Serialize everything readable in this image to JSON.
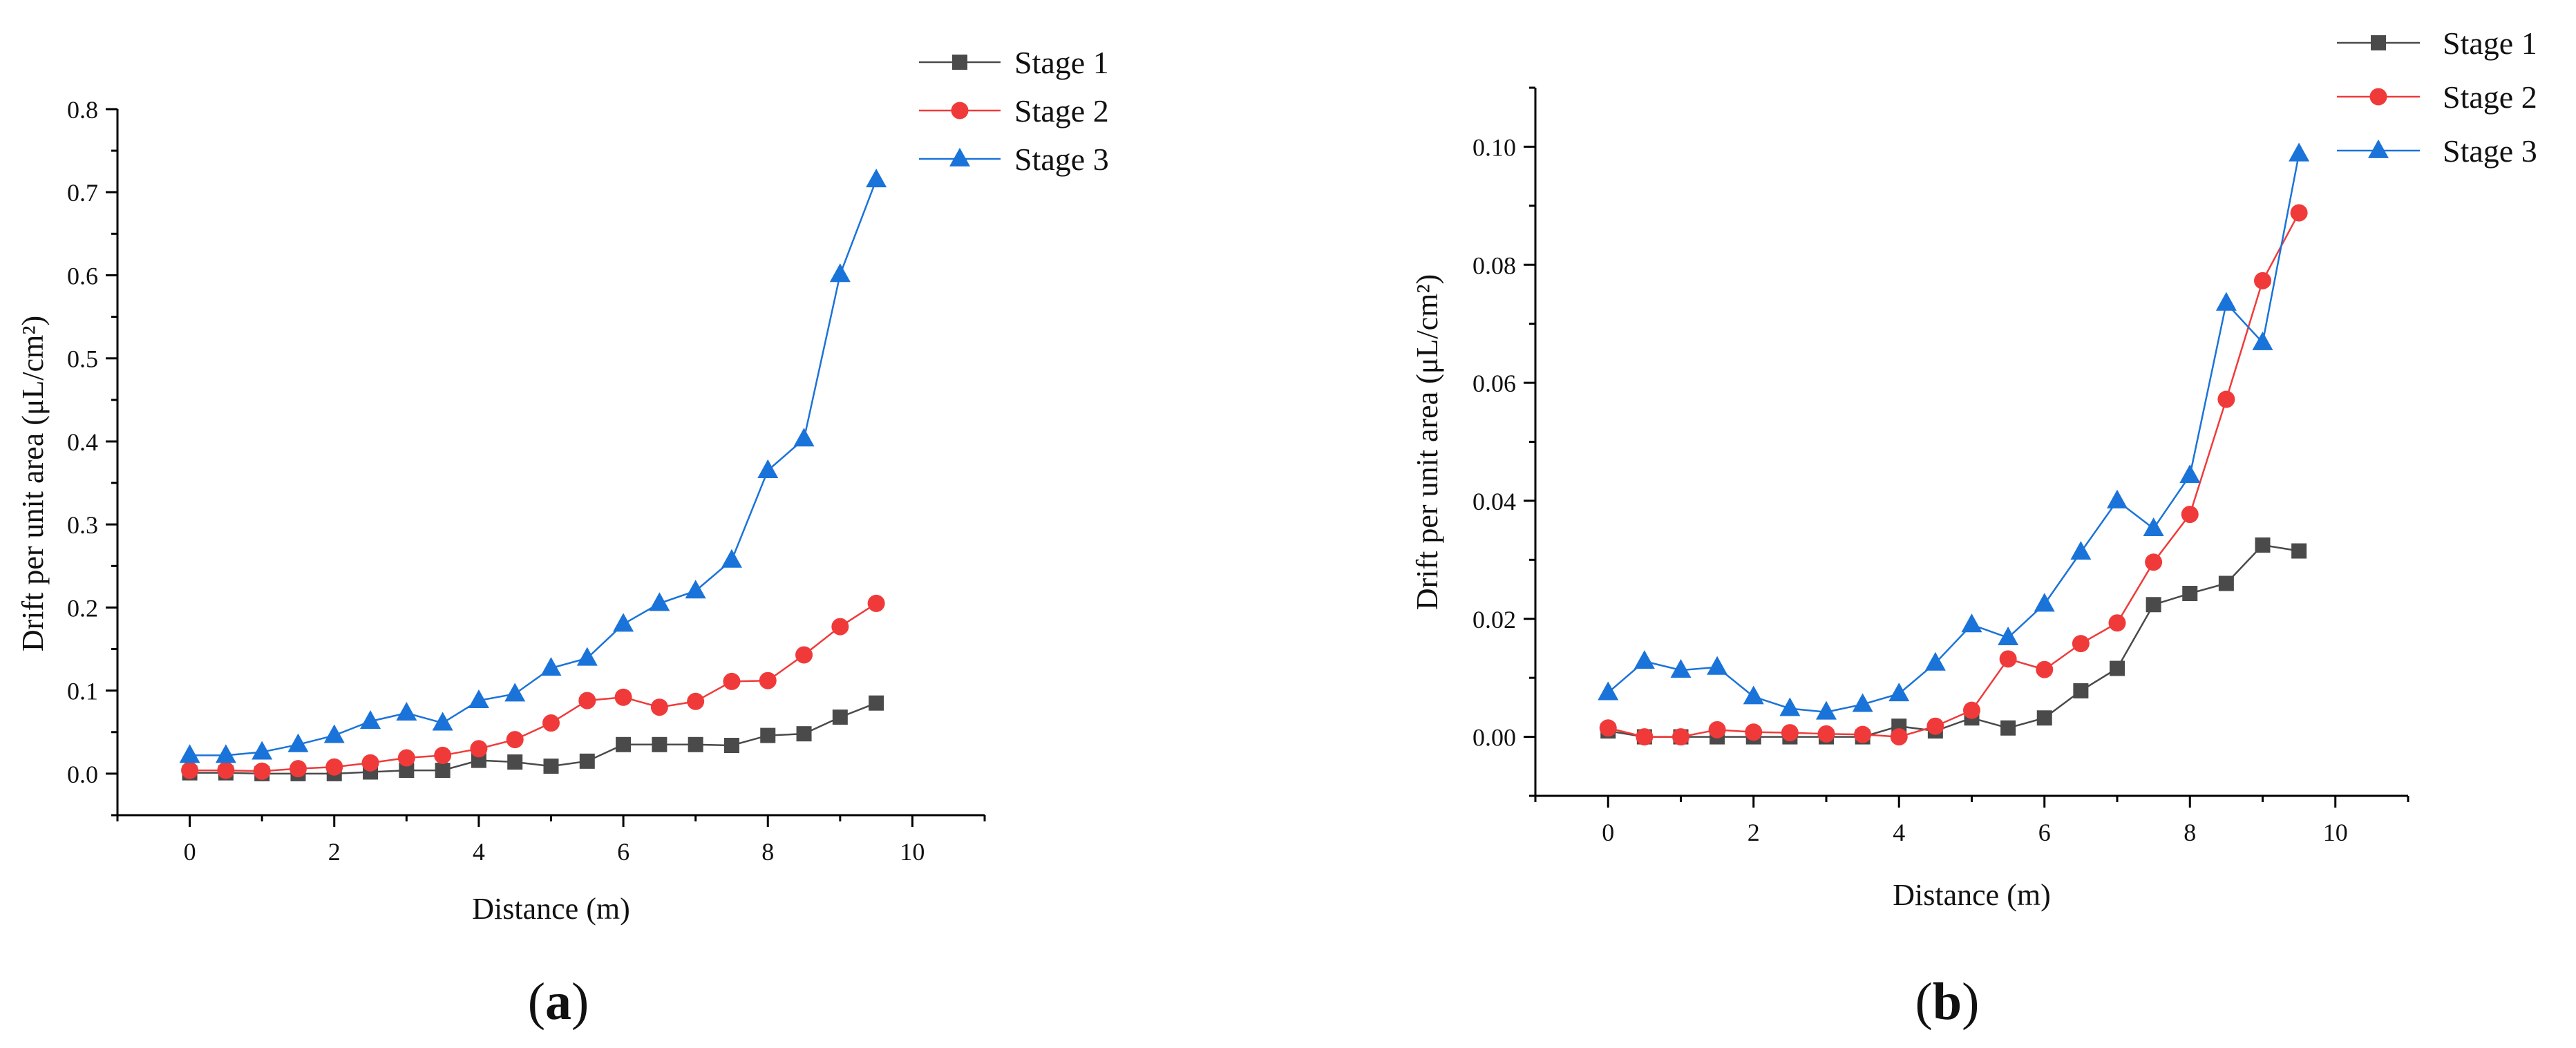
{
  "chart_data": [
    {
      "type": "line",
      "panel": "a",
      "title": "",
      "xlabel": "Distance (m)",
      "ylabel": "Drift per unit area (μL/cm²)",
      "xlim": [
        -1,
        11
      ],
      "ylim": [
        -0.05,
        0.8
      ],
      "xticks": [
        0,
        2,
        4,
        6,
        8,
        10
      ],
      "yticks": [
        0.0,
        0.1,
        0.2,
        0.3,
        0.4,
        0.5,
        0.6,
        0.7,
        0.8
      ],
      "ytick_labels": [
        "0.0",
        "0.1",
        "0.2",
        "0.3",
        "0.4",
        "0.5",
        "0.6",
        "0.7",
        "0.8"
      ],
      "x": [
        0,
        0.5,
        1,
        1.5,
        2,
        2.5,
        3,
        3.5,
        4,
        4.5,
        5,
        5.5,
        6,
        6.5,
        7,
        7.5,
        8,
        8.5,
        9,
        9.5
      ],
      "series": [
        {
          "name": "Stage 1",
          "color": "#4a4a4a",
          "marker": "square",
          "values": [
            0.001,
            0.001,
            0.0,
            0.0,
            0.0,
            0.002,
            0.004,
            0.004,
            0.016,
            0.014,
            0.009,
            0.015,
            0.035,
            0.035,
            0.035,
            0.034,
            0.046,
            0.048,
            0.068,
            0.085
          ]
        },
        {
          "name": "Stage 2",
          "color": "#f03a3a",
          "marker": "circle",
          "values": [
            0.004,
            0.004,
            0.003,
            0.006,
            0.008,
            0.013,
            0.019,
            0.022,
            0.03,
            0.041,
            0.061,
            0.088,
            0.092,
            0.08,
            0.087,
            0.111,
            0.112,
            0.143,
            0.177,
            0.205
          ]
        },
        {
          "name": "Stage 3",
          "color": "#1a73d9",
          "marker": "triangle",
          "values": [
            0.022,
            0.022,
            0.026,
            0.035,
            0.046,
            0.063,
            0.073,
            0.061,
            0.088,
            0.096,
            0.127,
            0.139,
            0.18,
            0.205,
            0.22,
            0.257,
            0.365,
            0.403,
            0.601,
            0.715
          ]
        }
      ],
      "legend": "top-right",
      "panel_label": {
        "open": "(",
        "letter": "a",
        "close": ")"
      }
    },
    {
      "type": "line",
      "panel": "b",
      "title": "",
      "xlabel": "Distance (m)",
      "ylabel": "Drift per unit area (μL/cm²)",
      "xlim": [
        -1,
        11
      ],
      "ylim": [
        -0.01,
        0.11
      ],
      "xticks": [
        0,
        2,
        4,
        6,
        8,
        10
      ],
      "yticks": [
        0.0,
        0.02,
        0.04,
        0.06,
        0.08,
        0.1
      ],
      "ytick_labels": [
        "0.00",
        "0.02",
        "0.04",
        "0.06",
        "0.08",
        "0.10"
      ],
      "x": [
        0,
        0.5,
        1,
        1.5,
        2,
        2.5,
        3,
        3.5,
        4,
        4.5,
        5,
        5.5,
        6,
        6.5,
        7,
        7.5,
        8,
        8.5,
        9,
        9.5
      ],
      "series": [
        {
          "name": "Stage 1",
          "color": "#4a4a4a",
          "marker": "square",
          "values": [
            0.001,
            0.0,
            0.0,
            0.0,
            0.0,
            0.0,
            0.0,
            0.0,
            0.0018,
            0.001,
            0.0032,
            0.0015,
            0.0032,
            0.0078,
            0.0116,
            0.0224,
            0.0243,
            0.026,
            0.0325,
            0.0315
          ]
        },
        {
          "name": "Stage 2",
          "color": "#f03a3a",
          "marker": "circle",
          "values": [
            0.0015,
            0.0,
            0.0,
            0.0012,
            0.0008,
            0.0007,
            0.0005,
            0.0004,
            0.0,
            0.0018,
            0.0045,
            0.0132,
            0.0114,
            0.0158,
            0.0193,
            0.0296,
            0.0377,
            0.0572,
            0.0773,
            0.0888
          ]
        },
        {
          "name": "Stage 3",
          "color": "#1a73d9",
          "marker": "triangle",
          "values": [
            0.0075,
            0.0128,
            0.0113,
            0.0118,
            0.0068,
            0.0048,
            0.0042,
            0.0055,
            0.0073,
            0.0125,
            0.019,
            0.0168,
            0.0225,
            0.0313,
            0.04,
            0.0353,
            0.0443,
            0.0735,
            0.0668,
            0.0988
          ]
        }
      ],
      "legend": "top-right",
      "panel_label": {
        "open": "(",
        "letter": "b",
        "close": ")"
      }
    }
  ]
}
